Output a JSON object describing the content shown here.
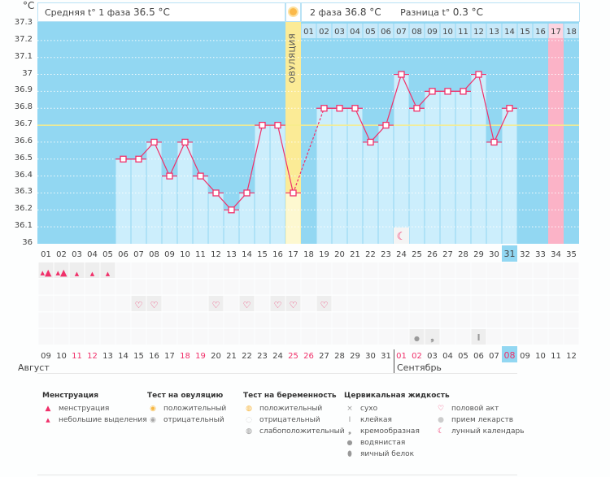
{
  "unit": "°C",
  "header": {
    "phase1": "Средняя t° 1 фаза",
    "phase1_value": "36.5 °C",
    "phase2": "2 фаза",
    "phase2_value": "36.8 °C",
    "diff": "Разница t°",
    "diff_value": "0.3 °C"
  },
  "ovulation_label": "ОВУЛЯЦИЯ",
  "months": {
    "first": "Август",
    "second": "Сентябрь"
  },
  "chart_data": {
    "type": "bar+line",
    "ylim": [
      36,
      37.3
    ],
    "yticks": [
      "37.3",
      "37.2",
      "37.1",
      "37",
      "36.9",
      "36.8",
      "36.7",
      "36.6",
      "36.5",
      "36.4",
      "36.3",
      "36.2",
      "36.1",
      "36"
    ],
    "cover_line": 36.7,
    "ovulation_day": 17,
    "expected_period_day": 34,
    "today_day": 31,
    "moon_day": 24,
    "days": [
      "01",
      "02",
      "03",
      "04",
      "05",
      "06",
      "07",
      "08",
      "09",
      "10",
      "11",
      "12",
      "13",
      "14",
      "15",
      "16",
      "17",
      "18",
      "19",
      "20",
      "21",
      "22",
      "23",
      "24",
      "25",
      "26",
      "27",
      "28",
      "29",
      "30",
      "31",
      "32",
      "33",
      "34",
      "35"
    ],
    "phase2_days": [
      "01",
      "02",
      "03",
      "04",
      "05",
      "06",
      "07",
      "08",
      "09",
      "10",
      "11",
      "12",
      "13",
      "14",
      "15",
      "16",
      "17",
      "18"
    ],
    "dates": [
      "09",
      "10",
      "11",
      "12",
      "13",
      "14",
      "15",
      "16",
      "17",
      "18",
      "19",
      "20",
      "21",
      "22",
      "23",
      "24",
      "25",
      "26",
      "27",
      "28",
      "29",
      "30",
      "31",
      "01",
      "02",
      "03",
      "04",
      "05",
      "06",
      "07",
      "08",
      "09",
      "10",
      "11",
      "12"
    ],
    "red_dates": [
      2,
      3,
      9,
      10,
      16,
      17,
      23,
      24,
      30
    ],
    "temperatures": [
      null,
      null,
      null,
      null,
      null,
      36.5,
      36.5,
      36.6,
      36.4,
      36.6,
      36.4,
      36.3,
      36.2,
      36.3,
      36.7,
      36.7,
      36.3,
      null,
      36.8,
      36.8,
      36.8,
      36.6,
      36.7,
      37.0,
      36.8,
      36.9,
      36.9,
      36.9,
      37.0,
      36.6,
      36.8,
      null,
      null,
      null,
      null
    ],
    "menstruation": {
      "1": "heavy",
      "2": "heavy",
      "3": "light",
      "4": "light",
      "5": "light"
    },
    "intercourse_days": [
      7,
      8,
      12,
      14,
      16,
      17,
      19
    ],
    "cervical": {
      "25": "watery",
      "26": "creamy",
      "29": "sticky"
    }
  },
  "colors": {
    "plot": "#92d7f2",
    "bar": "#cceefc",
    "ovulation": "#fbeb96",
    "period": "#fbb3c7",
    "line": "#f0306a",
    "cover": "#f7ec8a"
  },
  "legend": {
    "menstruation": {
      "title": "Менструация",
      "items": [
        "менструация",
        "небольшие выделения"
      ]
    },
    "ovulation_test": {
      "title": "Тест на овуляцию",
      "items": [
        "положительный",
        "отрицательный"
      ]
    },
    "pregnancy_test": {
      "title": "Тест на беременность",
      "items": [
        "положительный",
        "отрицательный",
        "слабоположительный"
      ]
    },
    "cervical": {
      "title": "Цервикальная жидкость",
      "items": [
        "сухо",
        "клейкая",
        "кремообразная",
        "водянистая",
        "яичный белок"
      ]
    },
    "other": {
      "items": [
        "половой акт",
        "прием лекарств",
        "лунный календарь"
      ]
    }
  }
}
